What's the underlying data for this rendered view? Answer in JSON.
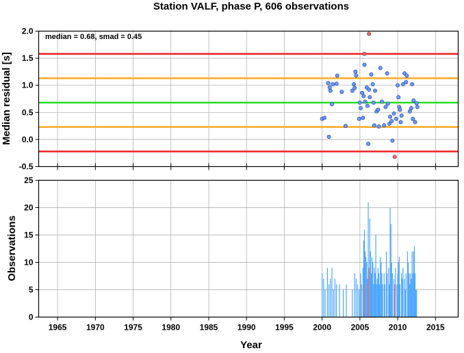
{
  "chart_data": [
    {
      "type": "scatter",
      "title": "Station VALF, phase P, 606 observations",
      "ylabel": "Median residual [s]",
      "annotation": "median = 0.68, smad = 0.45",
      "xlim": [
        1962.5,
        2018
      ],
      "ylim": [
        -0.5,
        2.0
      ],
      "x_ticks": [
        1965,
        1970,
        1975,
        1980,
        1985,
        1990,
        1995,
        2000,
        2005,
        2010,
        2015
      ],
      "y_ticks": [
        -0.5,
        0.0,
        0.5,
        1.0,
        1.5,
        2.0
      ],
      "y_tick_labels": [
        "-0.5",
        "0.0",
        "0.5",
        "1.0",
        "1.5",
        "2.0"
      ],
      "grid": true,
      "reference_lines": [
        {
          "y": 0.68,
          "color": "#22dd22",
          "role": "median"
        },
        {
          "y": 1.13,
          "color": "#ffaa22",
          "role": "median + 1 smad"
        },
        {
          "y": 0.23,
          "color": "#ffaa22",
          "role": "median - 1 smad"
        },
        {
          "y": 1.58,
          "color": "#ee2222",
          "role": "median + 2 smad"
        },
        {
          "y": -0.22,
          "color": "#ee2222",
          "role": "median - 2 smad"
        }
      ],
      "series": [
        {
          "color": "#6699ff",
          "points": [
            [
              2000.0,
              0.38
            ],
            [
              2000.3,
              0.4
            ],
            [
              2000.8,
              1.04
            ],
            [
              2000.9,
              0.05
            ],
            [
              2001.0,
              0.96
            ],
            [
              2001.1,
              0.9
            ],
            [
              2001.3,
              0.65
            ],
            [
              2001.4,
              1.02
            ],
            [
              2001.9,
              1.03
            ],
            [
              2002.0,
              1.18
            ],
            [
              2002.6,
              0.88
            ],
            [
              2003.1,
              0.25
            ],
            [
              2004.0,
              0.9
            ],
            [
              2004.2,
              1.02
            ],
            [
              2004.3,
              0.95
            ],
            [
              2004.4,
              1.25
            ],
            [
              2004.5,
              1.18
            ],
            [
              2004.9,
              0.38
            ],
            [
              2005.0,
              0.68
            ],
            [
              2005.1,
              0.58
            ],
            [
              2005.3,
              0.86
            ],
            [
              2005.4,
              0.4
            ],
            [
              2005.5,
              0.8
            ],
            [
              2005.6,
              1.38
            ],
            [
              2005.7,
              0.7
            ],
            [
              2005.9,
              0.96
            ],
            [
              2006.0,
              0.62
            ],
            [
              2006.1,
              -0.08
            ],
            [
              2006.2,
              0.92
            ],
            [
              2006.3,
              0.78
            ],
            [
              2006.5,
              1.2
            ],
            [
              2006.7,
              1.02
            ],
            [
              2006.8,
              0.68
            ],
            [
              2006.9,
              0.26
            ],
            [
              2007.0,
              0.9
            ],
            [
              2007.2,
              0.52
            ],
            [
              2007.4,
              0.55
            ],
            [
              2007.5,
              0.24
            ],
            [
              2007.7,
              1.32
            ],
            [
              2007.9,
              0.7
            ],
            [
              2008.2,
              0.26
            ],
            [
              2008.4,
              0.6
            ],
            [
              2008.6,
              1.22
            ],
            [
              2008.7,
              0.66
            ],
            [
              2008.9,
              0.29
            ],
            [
              2009.0,
              0.42
            ],
            [
              2009.2,
              0.34
            ],
            [
              2009.3,
              -0.02
            ],
            [
              2009.5,
              0.48
            ],
            [
              2009.8,
              0.38
            ],
            [
              2010.0,
              1.0
            ],
            [
              2010.1,
              0.78
            ],
            [
              2010.2,
              0.6
            ],
            [
              2010.3,
              0.55
            ],
            [
              2010.4,
              0.32
            ],
            [
              2010.5,
              0.44
            ],
            [
              2010.7,
              1.02
            ],
            [
              2010.9,
              1.22
            ],
            [
              2011.1,
              1.06
            ],
            [
              2011.2,
              1.18
            ],
            [
              2011.6,
              0.52
            ],
            [
              2011.8,
              0.58
            ],
            [
              2011.9,
              1.02
            ],
            [
              2012.0,
              0.38
            ],
            [
              2012.1,
              0.72
            ],
            [
              2012.3,
              0.32
            ],
            [
              2012.5,
              0.67
            ],
            [
              2012.6,
              0.6
            ]
          ]
        },
        {
          "color": "#ff6655",
          "points": [
            [
              2006.2,
              1.95
            ],
            [
              2005.6,
              1.58
            ],
            [
              2009.6,
              -0.32
            ]
          ]
        }
      ]
    },
    {
      "type": "bar",
      "xlabel": "Year",
      "ylabel": "Observations",
      "xlim": [
        1962.5,
        2018
      ],
      "ylim": [
        0,
        25
      ],
      "x_ticks": [
        1965,
        1970,
        1975,
        1980,
        1985,
        1990,
        1995,
        2000,
        2005,
        2010,
        2015
      ],
      "y_ticks": [
        0,
        5,
        10,
        15,
        20,
        25
      ],
      "y_tick_labels": [
        "0",
        "5",
        "10",
        "15",
        "20",
        "25"
      ],
      "grid": true,
      "series": [
        {
          "color": "#4da6ff",
          "bars": [
            [
              2000.0,
              8
            ],
            [
              2000.2,
              7
            ],
            [
              2000.4,
              5
            ],
            [
              2000.7,
              9
            ],
            [
              2000.9,
              6
            ],
            [
              2001.1,
              7
            ],
            [
              2001.3,
              9
            ],
            [
              2001.5,
              5
            ],
            [
              2001.7,
              7
            ],
            [
              2001.9,
              6
            ],
            [
              2002.3,
              6
            ],
            [
              2002.8,
              5
            ],
            [
              2003.2,
              6
            ],
            [
              2004.0,
              5
            ],
            [
              2004.3,
              8
            ],
            [
              2004.5,
              7
            ],
            [
              2004.7,
              6
            ],
            [
              2004.9,
              5
            ],
            [
              2005.1,
              8
            ],
            [
              2005.2,
              6
            ],
            [
              2005.4,
              9
            ],
            [
              2005.5,
              14
            ],
            [
              2005.6,
              16
            ],
            [
              2005.7,
              12
            ],
            [
              2005.8,
              11
            ],
            [
              2005.9,
              10
            ],
            [
              2006.0,
              7
            ],
            [
              2006.1,
              21
            ],
            [
              2006.2,
              9
            ],
            [
              2006.3,
              18
            ],
            [
              2006.4,
              12
            ],
            [
              2006.5,
              8
            ],
            [
              2006.6,
              11
            ],
            [
              2006.7,
              10
            ],
            [
              2006.8,
              6
            ],
            [
              2006.9,
              9
            ],
            [
              2007.0,
              8
            ],
            [
              2007.1,
              15
            ],
            [
              2007.2,
              6
            ],
            [
              2007.3,
              7
            ],
            [
              2007.4,
              9
            ],
            [
              2007.5,
              8
            ],
            [
              2007.6,
              6
            ],
            [
              2007.7,
              11
            ],
            [
              2007.8,
              10
            ],
            [
              2007.9,
              8
            ],
            [
              2008.0,
              6
            ],
            [
              2008.2,
              8
            ],
            [
              2008.3,
              6
            ],
            [
              2008.5,
              12
            ],
            [
              2008.6,
              8
            ],
            [
              2008.8,
              9
            ],
            [
              2008.9,
              6
            ],
            [
              2009.0,
              20
            ],
            [
              2009.1,
              17
            ],
            [
              2009.2,
              10
            ],
            [
              2009.3,
              8
            ],
            [
              2009.5,
              7
            ],
            [
              2009.7,
              9
            ],
            [
              2009.9,
              6
            ],
            [
              2010.0,
              8
            ],
            [
              2010.1,
              10
            ],
            [
              2010.2,
              11
            ],
            [
              2010.3,
              6
            ],
            [
              2010.5,
              8
            ],
            [
              2010.6,
              7
            ],
            [
              2010.7,
              9
            ],
            [
              2010.9,
              7
            ],
            [
              2011.0,
              5
            ],
            [
              2011.1,
              8
            ],
            [
              2011.3,
              12
            ],
            [
              2011.4,
              10
            ],
            [
              2011.5,
              8
            ],
            [
              2011.6,
              6
            ],
            [
              2011.7,
              8
            ],
            [
              2011.8,
              7
            ],
            [
              2011.9,
              12
            ],
            [
              2012.0,
              8
            ],
            [
              2012.1,
              12
            ],
            [
              2012.2,
              13
            ],
            [
              2012.3,
              8
            ],
            [
              2012.4,
              5
            ],
            [
              2012.5,
              5
            ]
          ]
        },
        {
          "color": "#ff6655",
          "bars": [
            [
              2005.6,
              6
            ],
            [
              2006.2,
              9
            ],
            [
              2009.6,
              6
            ]
          ]
        }
      ]
    }
  ]
}
